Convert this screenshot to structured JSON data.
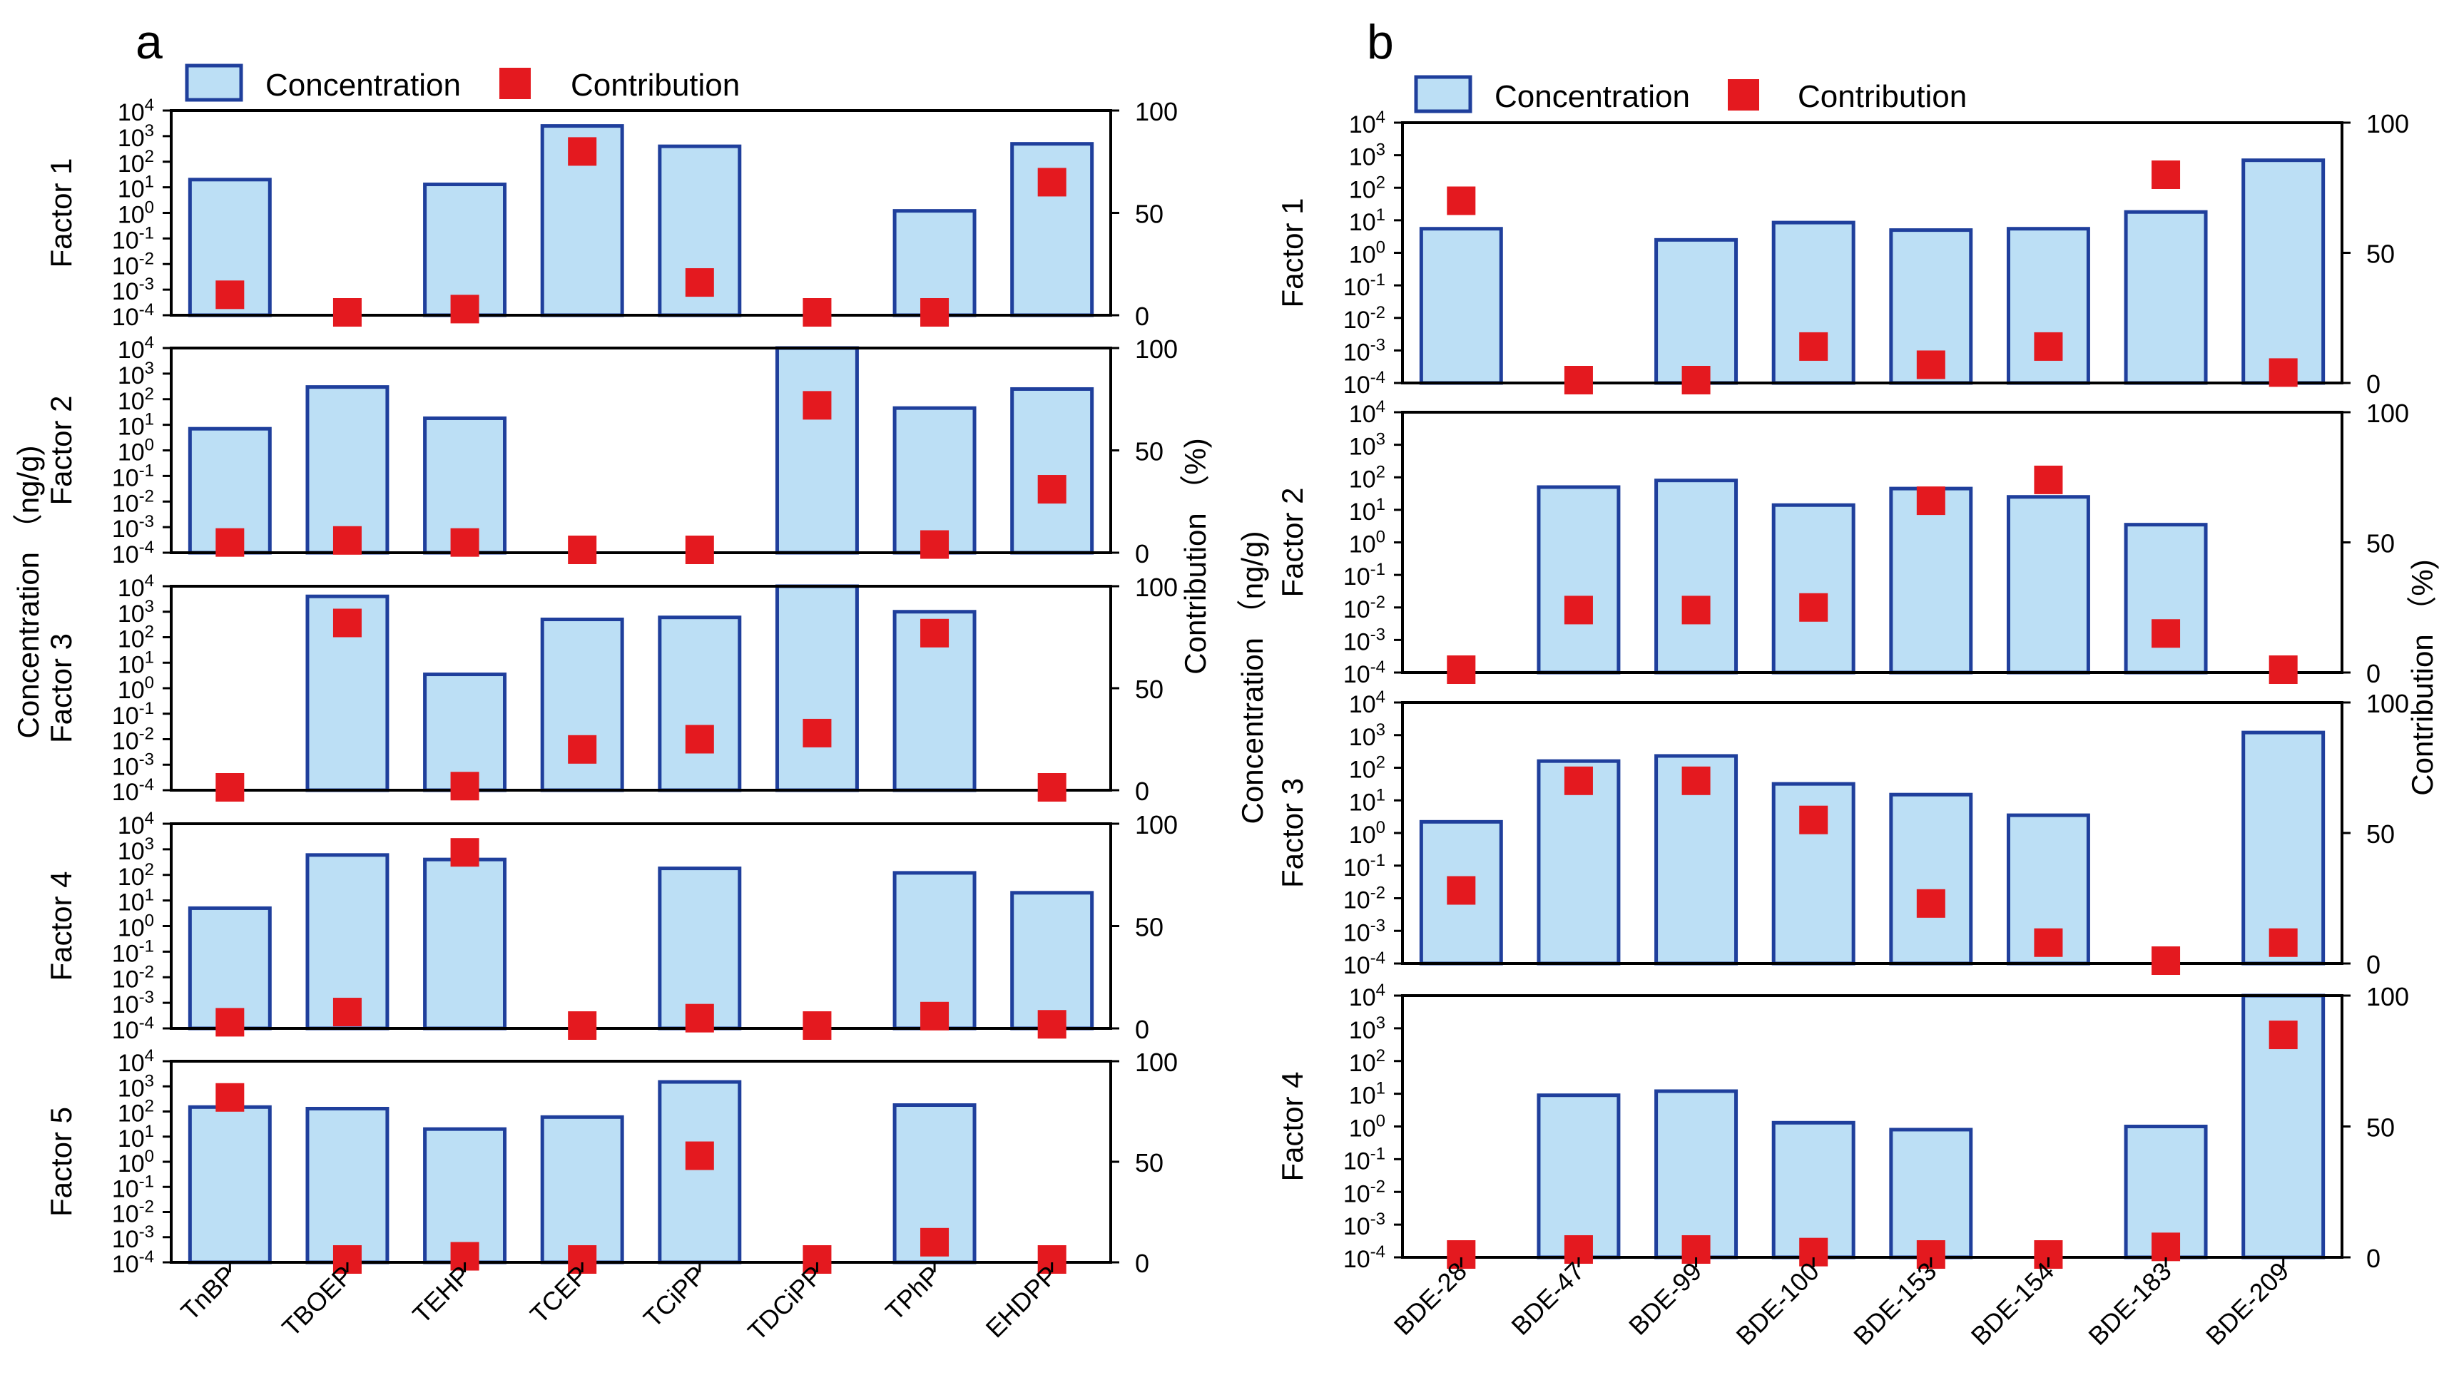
{
  "colors": {
    "bar_fill": "#BCDFF5",
    "bar_stroke": "#1F3F9C",
    "marker": "#E4191F",
    "axis": "#000000"
  },
  "legend": {
    "concentration": "Concentration",
    "contribution": "Contribution"
  },
  "panels": [
    {
      "id": "a",
      "label": "a",
      "left_axis_label": "Concentration （ng/g)",
      "right_axis_label": "Contribution （%)",
      "log_tick_labels": [
        "10-4",
        "10-3",
        "10-2",
        "10-1",
        "100",
        "101",
        "102",
        "103",
        "104"
      ],
      "right_tick_labels": [
        "0",
        "50",
        "100"
      ],
      "categories": [
        "TnBP",
        "TBOEP",
        "TEHP",
        "TCEP",
        "TCiPP",
        "TDCiPP",
        "TPhP",
        "EHDPP"
      ]
    },
    {
      "id": "b",
      "label": "b",
      "left_axis_label": "Concentration （ng/g)",
      "right_axis_label": "Contribution （%)",
      "log_tick_labels": [
        "10-4",
        "10-3",
        "10-2",
        "10-1",
        "100",
        "101",
        "102",
        "103",
        "104"
      ],
      "right_tick_labels": [
        "0",
        "50",
        "100"
      ],
      "categories": [
        "BDE-28",
        "BDE-47",
        "BDE-99",
        "BDE-100",
        "BDE-153",
        "BDE-154",
        "BDE-183",
        "BDE-209"
      ]
    }
  ],
  "chart_data": [
    {
      "panel": "a",
      "type": "bar",
      "title": "a",
      "bar_metric": "Concentration (ng/g)",
      "marker_metric": "Contribution (%)",
      "ylabel_left": "Concentration （ng/g)",
      "ylabel_right": "Contribution （%)",
      "y_scale_left": "log",
      "ylim_left": [
        0.0001,
        10000
      ],
      "ylim_right": [
        0,
        100
      ],
      "categories": [
        "TnBP",
        "TBOEP",
        "TEHP",
        "TCEP",
        "TCiPP",
        "TDCiPP",
        "TPhP",
        "EHDPP"
      ],
      "factors": [
        {
          "name": "Factor 1",
          "concentration": [
            20,
            null,
            13,
            2500,
            400,
            null,
            1.2,
            500
          ],
          "contribution": [
            10,
            0,
            3,
            80,
            16,
            0,
            0,
            65
          ]
        },
        {
          "name": "Factor 2",
          "concentration": [
            7,
            300,
            18,
            null,
            null,
            10000,
            45,
            250
          ],
          "contribution": [
            5,
            6,
            5,
            0,
            0,
            72,
            4,
            31
          ]
        },
        {
          "name": "Factor 3",
          "concentration": [
            null,
            4000,
            3.5,
            500,
            600,
            10000,
            1000,
            null
          ],
          "contribution": [
            0,
            82,
            2,
            20,
            25,
            28,
            77,
            0
          ]
        },
        {
          "name": "Factor 4",
          "concentration": [
            5,
            600,
            400,
            null,
            180,
            null,
            120,
            20
          ],
          "contribution": [
            3,
            8,
            86,
            0,
            5,
            0,
            6,
            2
          ]
        },
        {
          "name": "Factor 5",
          "concentration": [
            150,
            130,
            20,
            60,
            1500,
            null,
            180,
            null
          ],
          "contribution": [
            82,
            1,
            3,
            1,
            53,
            0,
            10,
            0
          ]
        }
      ]
    },
    {
      "panel": "b",
      "type": "bar",
      "title": "b",
      "bar_metric": "Concentration (ng/g)",
      "marker_metric": "Contribution (%)",
      "ylabel_left": "Concentration （ng/g)",
      "ylabel_right": "Contribution （%)",
      "y_scale_left": "log",
      "ylim_left": [
        0.0001,
        10000
      ],
      "ylim_right": [
        0,
        100
      ],
      "categories": [
        "BDE-28",
        "BDE-47",
        "BDE-99",
        "BDE-100",
        "BDE-153",
        "BDE-154",
        "BDE-183",
        "BDE-209"
      ],
      "factors": [
        {
          "name": "Factor 1",
          "concentration": [
            5.5,
            null,
            2.5,
            8.5,
            5,
            5.5,
            18,
            700
          ],
          "contribution": [
            70,
            0,
            0,
            14,
            7,
            14,
            80,
            4
          ]
        },
        {
          "name": "Factor 2",
          "concentration": [
            null,
            50,
            80,
            14,
            45,
            25,
            3.5,
            null
          ],
          "contribution": [
            0,
            24,
            24,
            25,
            66,
            74,
            15,
            0
          ]
        },
        {
          "name": "Factor 3",
          "concentration": [
            2.2,
            160,
            230,
            32,
            15,
            3.5,
            null,
            1200
          ],
          "contribution": [
            28,
            70,
            70,
            55,
            23,
            8,
            0,
            8
          ]
        },
        {
          "name": "Factor 4",
          "concentration": [
            null,
            9,
            12,
            1.3,
            0.8,
            null,
            1,
            10000
          ],
          "contribution": [
            0,
            3,
            3,
            2,
            0,
            0,
            4,
            85
          ]
        }
      ]
    }
  ]
}
